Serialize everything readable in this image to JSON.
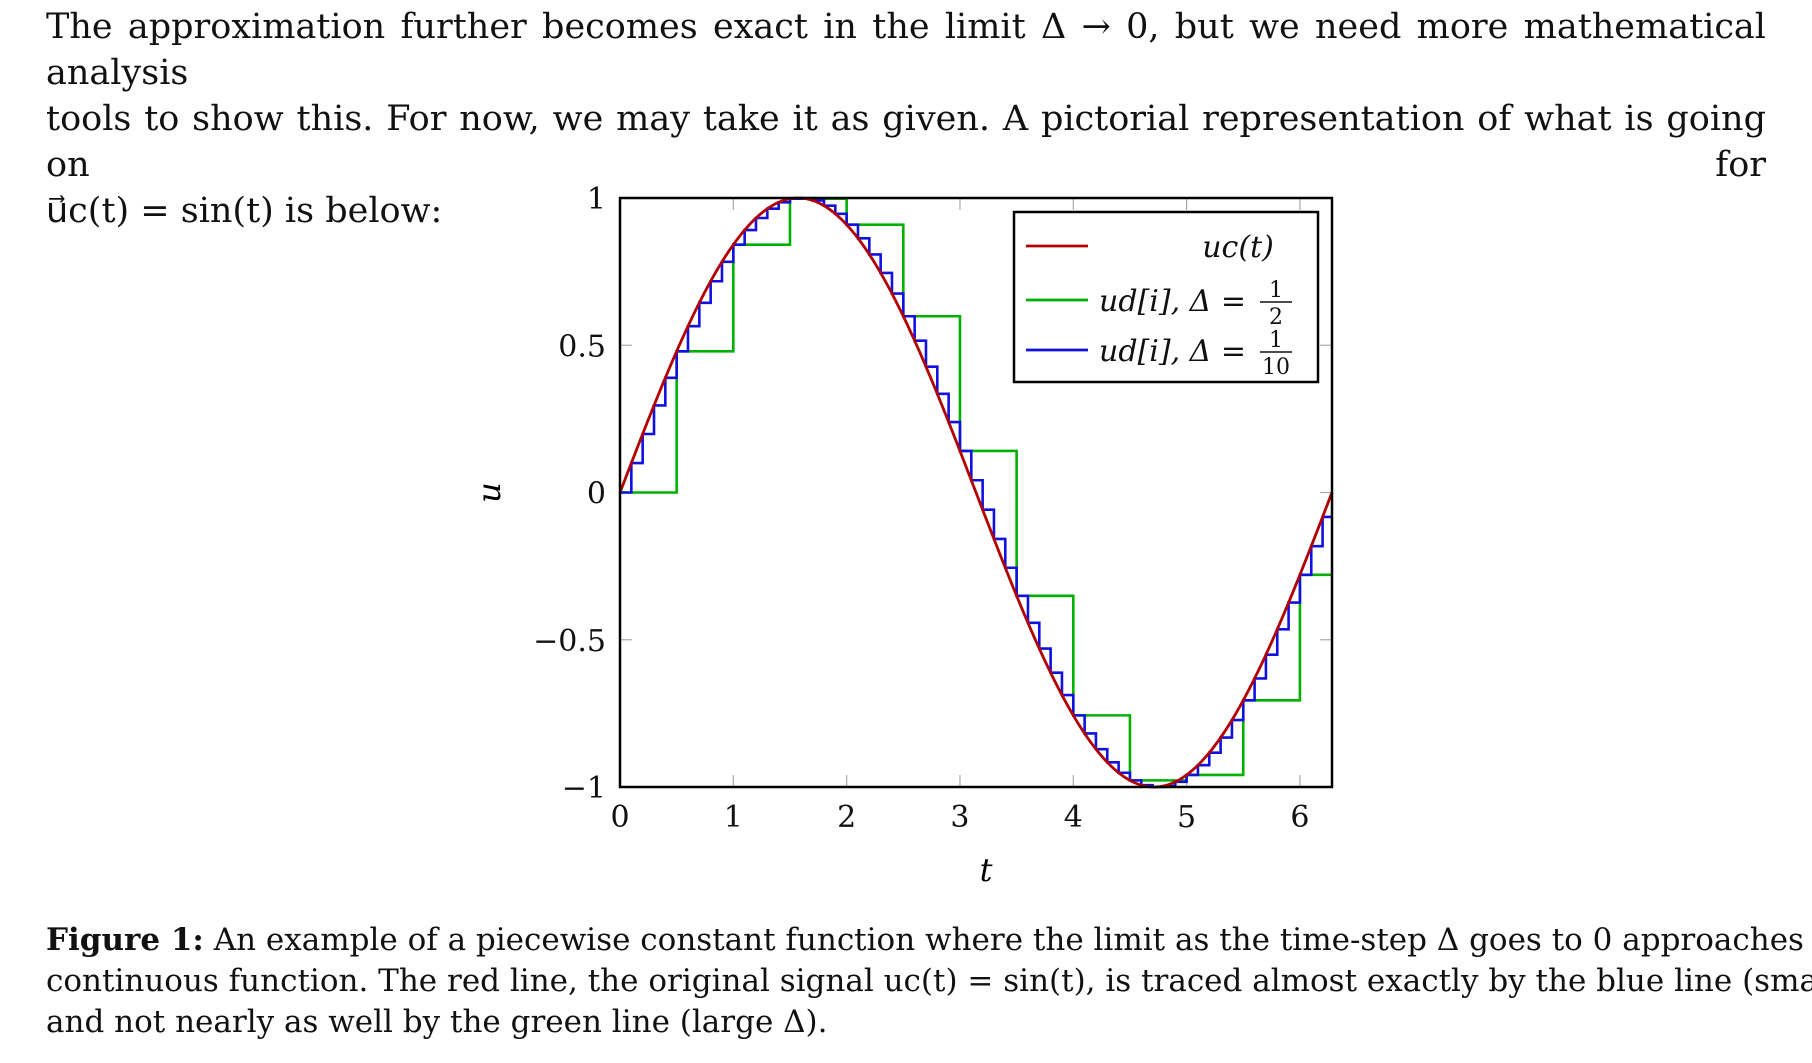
{
  "paragraph": {
    "line1": "The approximation further becomes exact in the limit Δ → 0, but we need more mathematical analysis",
    "line2": "tools to show this. For now, we may take it as given. A pictorial representation of what is going on for",
    "line3": "u⃗c(t) = sin(t) is below:"
  },
  "caption": {
    "label": "Figure 1:",
    "line1": " An example of a piecewise constant function where the limit as the time-step Δ goes to 0 approaches a",
    "line2": "continuous function. The red line, the original signal uc(t) = sin(t), is traced almost exactly by the blue line (small Δ)",
    "line3": "and not nearly as well by the green line (large Δ)."
  },
  "chart_data": {
    "type": "line",
    "xlabel": "t",
    "ylabel": "u",
    "xlim": [
      0,
      6.283
    ],
    "ylim": [
      -1,
      1
    ],
    "xticks": [
      "0",
      "1",
      "2",
      "3",
      "4",
      "5",
      "6"
    ],
    "yticks": [
      "−1",
      "−0.5",
      "0",
      "0.5",
      "1"
    ],
    "legend_position": "top-right",
    "series": [
      {
        "name": "uc(t)",
        "color": "#b30000",
        "function": "sin(t)",
        "style": "continuous"
      },
      {
        "name": "ud[i], Δ = 1/2",
        "color": "#00b000",
        "function": "sin(t)",
        "style": "step",
        "step": 0.5
      },
      {
        "name": "ud[i], Δ = 1/10",
        "color": "#1010e0",
        "function": "sin(t)",
        "style": "step",
        "step": 0.1
      }
    ],
    "legend_labels": [
      {
        "main": "uc(t)"
      },
      {
        "main": "ud[i], Δ =",
        "num": "1",
        "den": "2"
      },
      {
        "main": "ud[i], Δ =",
        "num": "1",
        "den": "10"
      }
    ]
  }
}
